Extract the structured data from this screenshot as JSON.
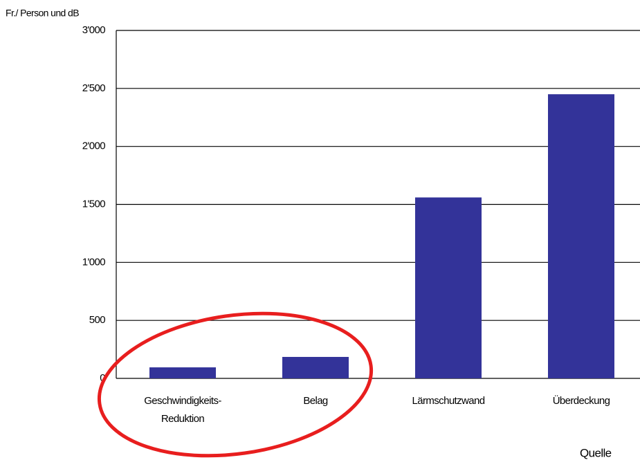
{
  "chart_data": {
    "type": "bar",
    "y_axis_label": "Fr./ Person und dB",
    "categories": [
      "Geschwindigkeits-\nReduktion",
      "Belag",
      "Lärmschutzwand",
      "Überdeckung"
    ],
    "values": [
      95,
      185,
      1560,
      2450
    ],
    "color": "#333399",
    "ylim": [
      0,
      3000
    ],
    "yticks": [
      0,
      500,
      {
        "value": 1000,
        "label": "1'000"
      },
      {
        "value": 1500,
        "label": "1'500"
      },
      {
        "value": 2000,
        "label": "2'000"
      },
      {
        "value": 2500,
        "label": "2'500"
      },
      {
        "value": 3000,
        "label": "3'000"
      }
    ],
    "grid": true,
    "source": "Quelle"
  }
}
